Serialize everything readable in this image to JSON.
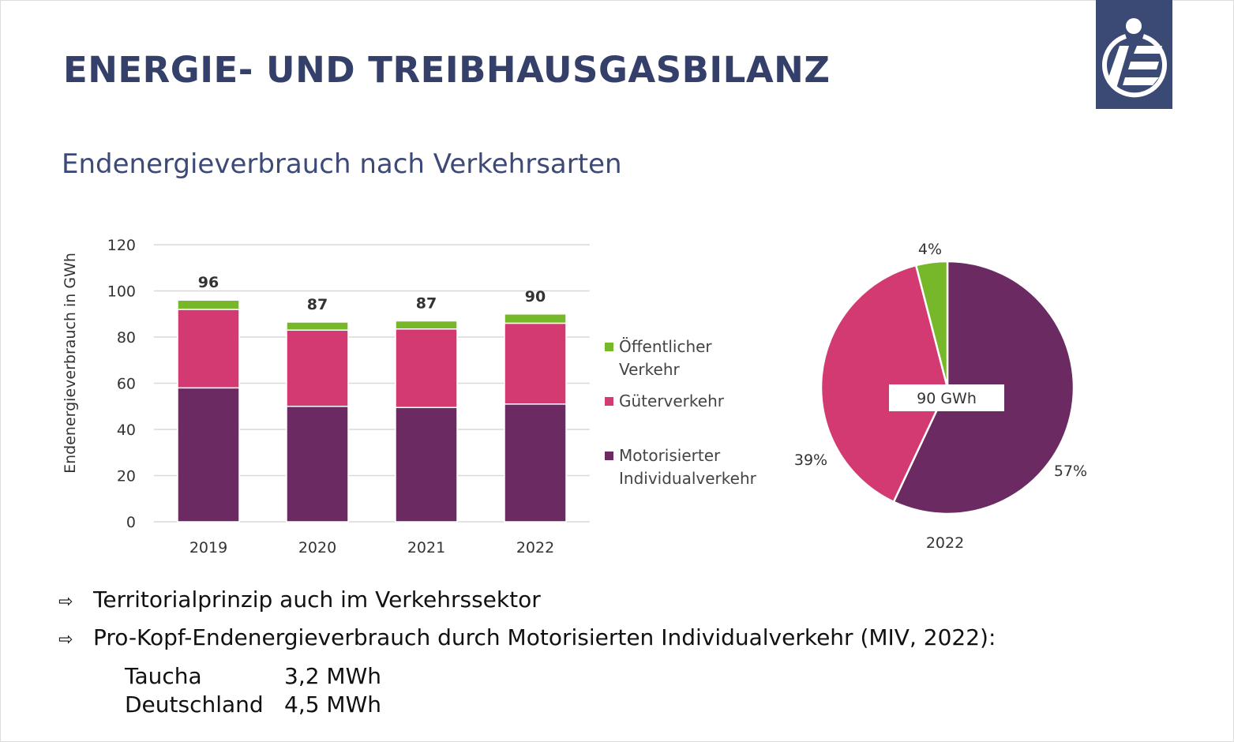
{
  "header": {
    "title": "ENERGIE- UND TREIBHAUSGASBILANZ",
    "subtitle": "Endenergieverbrauch nach Verkehrsarten"
  },
  "colors": {
    "title": "#34406a",
    "oev": "#76b82a",
    "gueter": "#d33a72",
    "miv": "#6b2b62",
    "logo_bg": "#3a4a75"
  },
  "chart_data": [
    {
      "type": "bar",
      "stacked": true,
      "ylabel": "Endenergieverbrauch in GWh",
      "ylim": [
        0,
        120
      ],
      "yticks": [
        "0",
        "20",
        "40",
        "60",
        "80",
        "100",
        "120"
      ],
      "grid": true,
      "legend_position": "right",
      "categories": [
        "2019",
        "2020",
        "2021",
        "2022"
      ],
      "totals": [
        "96",
        "87",
        "87",
        "90"
      ],
      "series": [
        {
          "name": "Motorisierter Individualverkehr",
          "color": "#6b2b62",
          "values": [
            58,
            50,
            49.5,
            51
          ]
        },
        {
          "name": "Güterverkehr",
          "color": "#d33a72",
          "values": [
            34,
            33,
            34,
            35
          ]
        },
        {
          "name": "Öffentlicher Verkehr",
          "color": "#76b82a",
          "values": [
            4,
            3.5,
            3.5,
            4
          ]
        }
      ]
    },
    {
      "type": "pie",
      "category": "2022",
      "center_label": "90 GWh",
      "slices": [
        {
          "name": "Motorisierter Individualverkehr",
          "value": 57,
          "label": "57%",
          "color": "#6b2b62"
        },
        {
          "name": "Güterverkehr",
          "value": 39,
          "label": "39%",
          "color": "#d33a72"
        },
        {
          "name": "Öffentlicher Verkehr",
          "value": 4,
          "label": "4%",
          "color": "#76b82a"
        }
      ]
    }
  ],
  "legend": [
    {
      "label": "Öffentlicher Verkehr",
      "color": "#76b82a"
    },
    {
      "label": "Güterverkehr",
      "color": "#d33a72"
    },
    {
      "label": "Motorisierter Individualverkehr",
      "color": "#6b2b62"
    }
  ],
  "bullets": [
    "Territorialprinzip auch im Verkehrssektor",
    "Pro-Kopf-Endenergieverbrauch durch Motorisierten Individualverkehr (MIV, 2022):"
  ],
  "bullet_icon": "right-arrow-outline-icon",
  "per_capita": [
    {
      "place": "Taucha",
      "value": "3,2 MWh"
    },
    {
      "place": "Deutschland",
      "value": "4,5 MWh"
    }
  ]
}
